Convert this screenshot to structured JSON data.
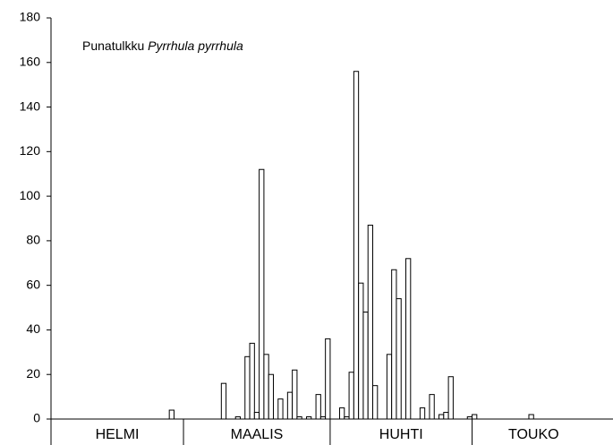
{
  "chart_data": {
    "type": "bar",
    "title": "Punatulkku",
    "title_species": "Pyrrhula pyrrhula",
    "x": [
      25,
      36,
      39,
      41,
      42,
      43,
      44,
      45,
      46,
      48,
      50,
      51,
      52,
      54,
      56,
      57,
      58,
      61,
      62,
      63,
      64,
      65,
      66,
      67,
      68,
      71,
      72,
      73,
      75,
      78,
      80,
      82,
      83,
      84,
      88,
      89,
      101
    ],
    "values": [
      4,
      16,
      1,
      28,
      34,
      3,
      112,
      29,
      20,
      9,
      12,
      22,
      1,
      1,
      11,
      1,
      36,
      5,
      1,
      21,
      156,
      61,
      48,
      87,
      15,
      29,
      67,
      54,
      72,
      5,
      11,
      2,
      3,
      19,
      1,
      2,
      2
    ],
    "color": "#ffffff",
    "xlim": [
      0,
      115
    ],
    "xticks": [
      0,
      28,
      59,
      89
    ],
    "months": [
      "HELMI",
      "MAALIS",
      "HUHTI",
      "TOUKO"
    ],
    "ylim": [
      0,
      180
    ],
    "yticks": [
      0,
      20,
      40,
      60,
      80,
      100,
      120,
      140,
      160,
      180
    ]
  }
}
